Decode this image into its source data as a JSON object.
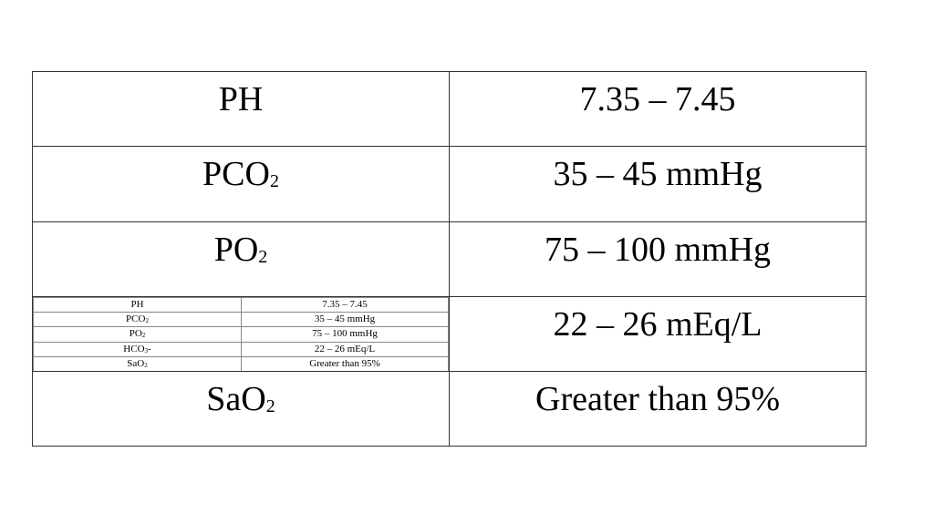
{
  "table": {
    "rows": [
      [
        {
          "main": "PH"
        },
        {
          "main": "7.35 – 7.45"
        }
      ],
      [
        {
          "main": "PCO",
          "sub": "2"
        },
        {
          "main": "35 – 45 mmHg"
        }
      ],
      [
        {
          "main": "PO",
          "sub": "2"
        },
        {
          "main": "75 – 100 mmHg"
        }
      ],
      [
        {
          "inset": true
        },
        {
          "main": "22 – 26 mEq/L"
        }
      ],
      [
        {
          "main": "SaO",
          "sub": "2"
        },
        {
          "main": "Greater than 95%"
        }
      ]
    ]
  },
  "inset_table": {
    "rows": [
      [
        {
          "main": "PH"
        },
        {
          "main": "7.35 – 7.45"
        }
      ],
      [
        {
          "main": "PCO",
          "sub": "2"
        },
        {
          "main": "35 – 45 mmHg"
        }
      ],
      [
        {
          "main": "PO",
          "sub": "2"
        },
        {
          "main": "75 – 100 mmHg"
        }
      ],
      [
        {
          "main": "HCO",
          "sub": "3",
          "tail": "-"
        },
        {
          "main": "22 – 26 mEq/L"
        }
      ],
      [
        {
          "main": "SaO",
          "sub": "2"
        },
        {
          "main": "Greater than 95%"
        }
      ]
    ]
  }
}
